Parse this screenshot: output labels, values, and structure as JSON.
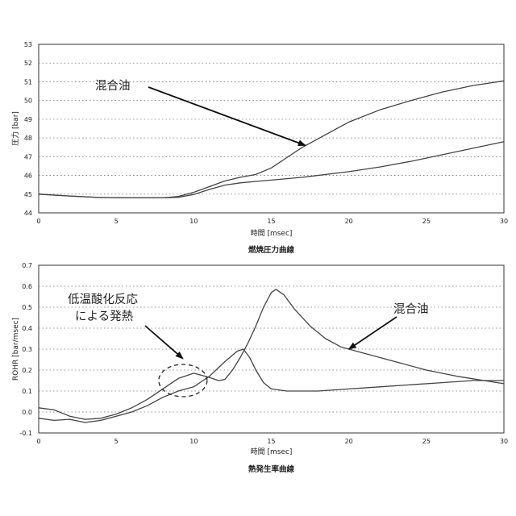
{
  "chart_data": [
    {
      "type": "line",
      "title": "燃焼圧力曲線",
      "xlabel": "時間 [msec]",
      "ylabel": "圧力 [bar]",
      "xlim": [
        0,
        30
      ],
      "ylim": [
        44,
        53
      ],
      "xticks": [
        0,
        5,
        10,
        15,
        20,
        25,
        30
      ],
      "yticks": [
        44,
        45,
        46,
        47,
        48,
        49,
        50,
        51,
        52,
        53
      ],
      "grid": "horizontal dotted",
      "annotations": [
        {
          "text": "混合油",
          "target": [
            17.2,
            47.6
          ]
        }
      ],
      "series": [
        {
          "values": [
            [
              0,
              45.0
            ],
            [
              2,
              44.9
            ],
            [
              4,
              44.82
            ],
            [
              6,
              44.8
            ],
            [
              8,
              44.8
            ],
            [
              9,
              44.88
            ],
            [
              10,
              45.1
            ],
            [
              11,
              45.4
            ],
            [
              12,
              45.7
            ],
            [
              13,
              45.9
            ],
            [
              14,
              46.05
            ],
            [
              15,
              46.4
            ],
            [
              16,
              46.95
            ],
            [
              17,
              47.5
            ],
            [
              18,
              47.95
            ],
            [
              19,
              48.4
            ],
            [
              20,
              48.85
            ],
            [
              22,
              49.5
            ],
            [
              24,
              50.0
            ],
            [
              26,
              50.45
            ],
            [
              28,
              50.8
            ],
            [
              30,
              51.05
            ]
          ]
        },
        {
          "values": [
            [
              0,
              45.0
            ],
            [
              2,
              44.9
            ],
            [
              4,
              44.82
            ],
            [
              6,
              44.8
            ],
            [
              8,
              44.8
            ],
            [
              9,
              44.83
            ],
            [
              10,
              44.98
            ],
            [
              11,
              45.25
            ],
            [
              12,
              45.48
            ],
            [
              13,
              45.6
            ],
            [
              14,
              45.68
            ],
            [
              15,
              45.75
            ],
            [
              17,
              45.9
            ],
            [
              20,
              46.2
            ],
            [
              22,
              46.45
            ],
            [
              24,
              46.75
            ],
            [
              26,
              47.1
            ],
            [
              28,
              47.45
            ],
            [
              30,
              47.8
            ]
          ]
        }
      ]
    },
    {
      "type": "line",
      "title": "熱発生率曲線",
      "xlabel": "時間 [msec]",
      "ylabel": "ROHR [bar/msec]",
      "xlim": [
        0,
        30
      ],
      "ylim": [
        -0.1,
        0.7
      ],
      "xticks": [
        0,
        5,
        10,
        15,
        20,
        25,
        30
      ],
      "yticks": [
        -0.1,
        0.0,
        0.1,
        0.2,
        0.3,
        0.4,
        0.5,
        0.6,
        0.7
      ],
      "grid": "horizontal dotted",
      "annotations": [
        {
          "text": "低温酸化反応",
          "target": [
            9.3,
            0.17
          ]
        },
        {
          "text": "による発熱",
          "target": [
            9.3,
            0.17
          ]
        },
        {
          "text": "混合油",
          "target": [
            20.0,
            0.3
          ]
        }
      ],
      "series": [
        {
          "values": [
            [
              0,
              0.02
            ],
            [
              1,
              0.01
            ],
            [
              2,
              -0.02
            ],
            [
              3,
              -0.035
            ],
            [
              4,
              -0.03
            ],
            [
              5,
              -0.01
            ],
            [
              6,
              0.02
            ],
            [
              7,
              0.06
            ],
            [
              8,
              0.11
            ],
            [
              9,
              0.16
            ],
            [
              10,
              0.185
            ],
            [
              11,
              0.165
            ],
            [
              11.6,
              0.15
            ],
            [
              12,
              0.155
            ],
            [
              12.5,
              0.2
            ],
            [
              13,
              0.26
            ],
            [
              13.5,
              0.33
            ],
            [
              14,
              0.41
            ],
            [
              14.5,
              0.5
            ],
            [
              15,
              0.57
            ],
            [
              15.3,
              0.585
            ],
            [
              15.8,
              0.56
            ],
            [
              16.5,
              0.49
            ],
            [
              17.5,
              0.41
            ],
            [
              18.5,
              0.35
            ],
            [
              19.5,
              0.31
            ],
            [
              21,
              0.28
            ],
            [
              23,
              0.24
            ],
            [
              25,
              0.2
            ],
            [
              27,
              0.17
            ],
            [
              30,
              0.135
            ]
          ]
        },
        {
          "values": [
            [
              0,
              -0.03
            ],
            [
              1,
              -0.04
            ],
            [
              2,
              -0.035
            ],
            [
              3,
              -0.05
            ],
            [
              4,
              -0.04
            ],
            [
              5,
              -0.02
            ],
            [
              6,
              0.0
            ],
            [
              7,
              0.03
            ],
            [
              8,
              0.07
            ],
            [
              9,
              0.1
            ],
            [
              10,
              0.12
            ],
            [
              11,
              0.17
            ],
            [
              12,
              0.24
            ],
            [
              12.8,
              0.29
            ],
            [
              13.2,
              0.3
            ],
            [
              13.6,
              0.26
            ],
            [
              14,
              0.2
            ],
            [
              14.5,
              0.14
            ],
            [
              15,
              0.11
            ],
            [
              16,
              0.1
            ],
            [
              18,
              0.1
            ],
            [
              20,
              0.11
            ],
            [
              22,
              0.12
            ],
            [
              24,
              0.13
            ],
            [
              26,
              0.14
            ],
            [
              28,
              0.15
            ],
            [
              30,
              0.15
            ]
          ]
        }
      ]
    }
  ]
}
